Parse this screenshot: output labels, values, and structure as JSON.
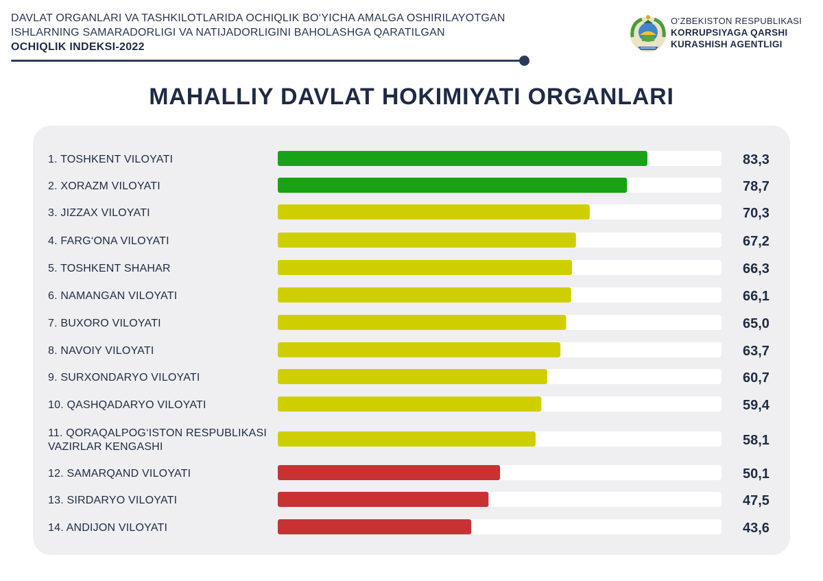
{
  "header": {
    "line1": "DAVLAT ORGANLARI VA TASHKILOTLARIDA OCHIQLIK BO‘YICHA AMALGA OSHIRILAYOTGAN",
    "line2": "ISHLARNING SAMARADORLIGI VA NATIJADORLIGINI BAHOLASHGA QARATILGAN",
    "index_title": "OCHIQLIK INDEKSI-2022"
  },
  "agency": {
    "line1": "O‘ZBEKISTON RESPUBLIKASI",
    "line2": "KORRUPSIYAGA QARSHI",
    "line3": "KURASHISH AGENTLIGI",
    "emblem_icon": "uzbekistan-coat-of-arms-icon"
  },
  "colors": {
    "high": "#17a315",
    "medium": "#cfcf00",
    "low": "#c83232",
    "track": "#ffffff",
    "panel": "#efeff1",
    "text": "#1f2a44"
  },
  "chart_data": {
    "type": "bar",
    "orientation": "horizontal",
    "title": "MAHALLIY DAVLAT HOKIMIYATI ORGANLARI",
    "xlim": [
      0,
      100
    ],
    "grid": false,
    "legend": "none",
    "categories": [
      [
        "1. TOSHKENT VILOYATI"
      ],
      [
        "2. XORAZM VILOYATI"
      ],
      [
        "3. JIZZAX VILOYATI"
      ],
      [
        "4. FARG‘ONA VILOYATI"
      ],
      [
        "5. TOSHKENT SHAHAR"
      ],
      [
        "6. NAMANGAN VILOYATI"
      ],
      [
        "7. BUXORO VILOYATI"
      ],
      [
        "8. NAVOIY VILOYATI"
      ],
      [
        "9. SURXONDARYO VILOYATI"
      ],
      [
        "10. QASHQADARYO VILOYATI"
      ],
      [
        "11. QORAQALPOG‘ISTON RESPUBLIKASI",
        "VAZIRLAR KENGASHI"
      ],
      [
        "12. SAMARQAND VILOYATI"
      ],
      [
        "13. SIRDARYO VILOYATI"
      ],
      [
        "14. ANDIJON VILOYATI"
      ]
    ],
    "values": [
      83.3,
      78.7,
      70.3,
      67.2,
      66.3,
      66.1,
      65.0,
      63.7,
      60.7,
      59.4,
      58.1,
      50.1,
      47.5,
      43.6
    ],
    "value_labels": [
      "83,3",
      "78,7",
      "70,3",
      "67,2",
      "66,3",
      "66,1",
      "65,0",
      "63,7",
      "60,7",
      "59,4",
      "58,1",
      "50,1",
      "47,5",
      "43,6"
    ],
    "color_groups": [
      "high",
      "high",
      "medium",
      "medium",
      "medium",
      "medium",
      "medium",
      "medium",
      "medium",
      "medium",
      "medium",
      "low",
      "low",
      "low"
    ]
  }
}
